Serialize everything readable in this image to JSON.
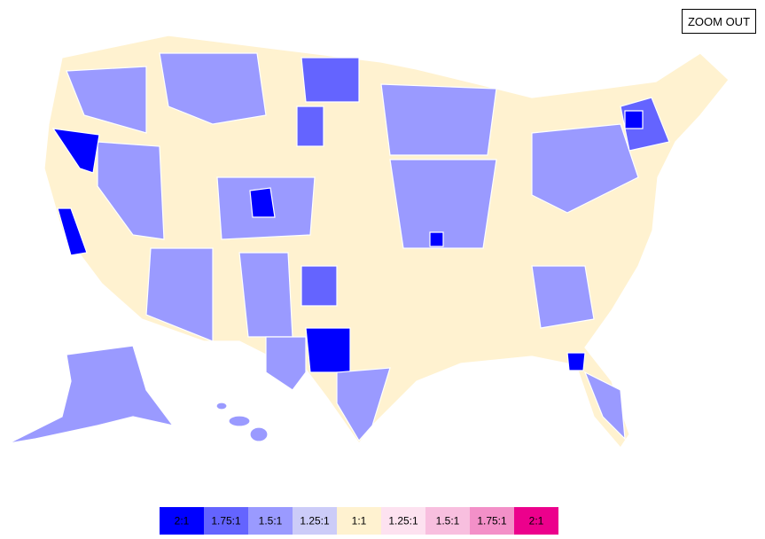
{
  "button": {
    "label": "ZOOM OUT"
  },
  "legend": {
    "items": [
      {
        "label": "2:1",
        "color": "#0000ff"
      },
      {
        "label": "1.75:1",
        "color": "#6464ff"
      },
      {
        "label": "1.5:1",
        "color": "#9a9aff"
      },
      {
        "label": "1.25:1",
        "color": "#ccccf8"
      },
      {
        "label": "1:1",
        "color": "#fff2d0"
      },
      {
        "label": "1.25:1",
        "color": "#fde2f0"
      },
      {
        "label": "1.5:1",
        "color": "#f8bfdf"
      },
      {
        "label": "1.75:1",
        "color": "#f390c8"
      },
      {
        "label": "2:1",
        "color": "#ec008c"
      }
    ]
  }
}
